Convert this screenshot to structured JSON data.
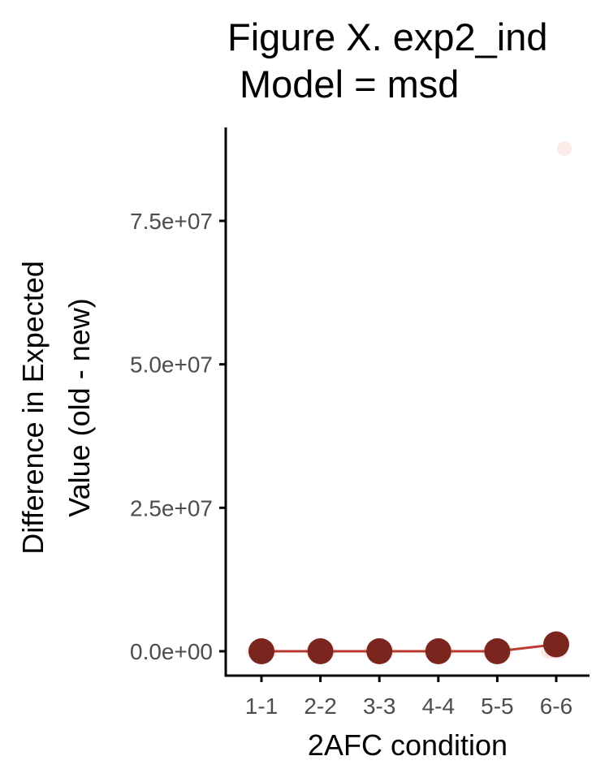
{
  "chart_data": {
    "type": "line",
    "title_lines": [
      "Figure X. exp2_ind",
      "Model = msd"
    ],
    "xlabel": "2AFC condition",
    "ylabel_lines": [
      "Difference in Expected",
      "Value (old - new)"
    ],
    "categories": [
      "1-1",
      "2-2",
      "3-3",
      "4-4",
      "5-5",
      "6-6"
    ],
    "yticks": [
      0,
      25000000,
      50000000,
      75000000
    ],
    "ytick_labels": [
      "0.0e+00",
      "2.5e+07",
      "5.0e+07",
      "7.5e+07"
    ],
    "ylim": [
      -4000000,
      91800000
    ],
    "grid": false,
    "legend": "none",
    "series": [
      {
        "values": [
          0,
          0,
          0,
          0,
          0,
          1200000
        ],
        "color": "#7a261f",
        "line_color": "#b83a30"
      }
    ],
    "individual_points": {
      "color": "#f4c7bd",
      "values": [
        [
          0,
          0,
          0,
          0,
          0
        ],
        [
          0,
          0,
          0,
          0,
          0
        ],
        [
          0,
          0,
          0,
          0,
          0
        ],
        [
          0,
          0,
          0,
          0,
          0
        ],
        [
          0,
          0,
          0,
          0,
          0
        ],
        [
          0,
          0,
          0,
          0,
          87600000
        ]
      ]
    }
  }
}
